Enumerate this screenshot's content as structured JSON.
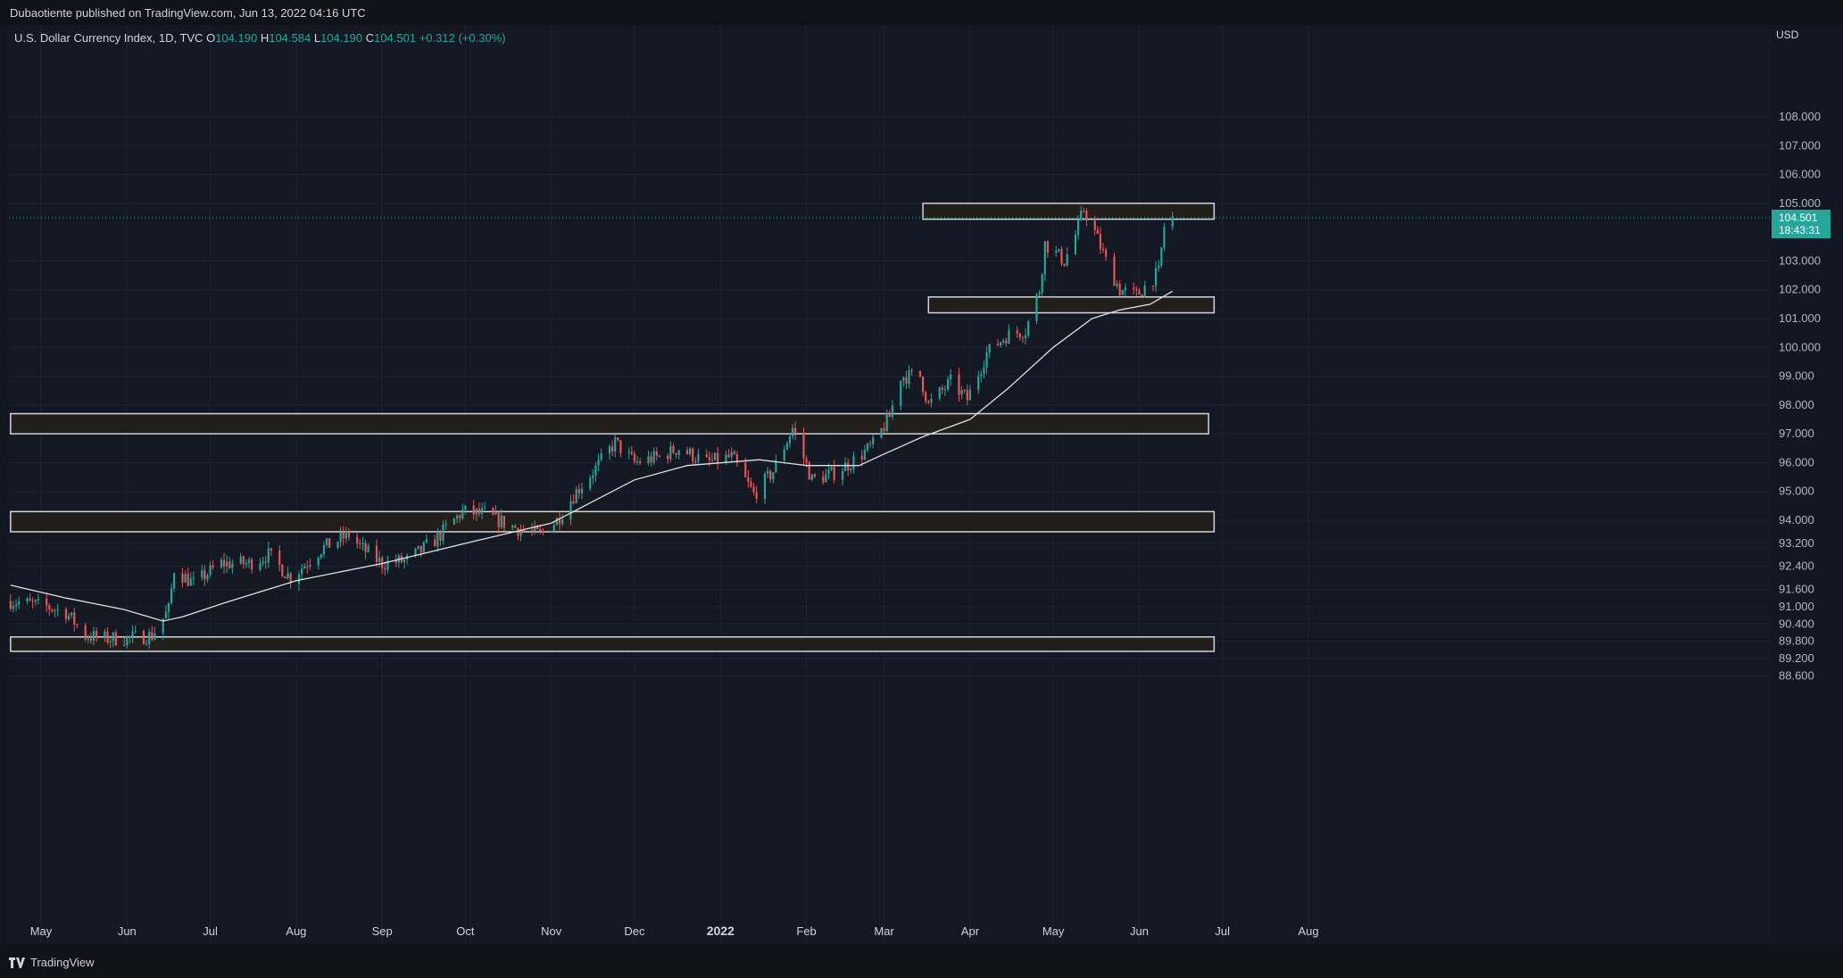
{
  "header": {
    "published": "Dubaotiente published on TradingView.com, Jun 13, 2022 04:16 UTC"
  },
  "legend": {
    "symbol": "U.S. Dollar Currency Index, 1D, TVC",
    "o_label": "O",
    "o": "104.190",
    "h_label": "H",
    "h": "104.584",
    "l_label": "L",
    "l": "104.190",
    "c_label": "C",
    "c": "104.501",
    "change": "+0.312 (+0.30%)"
  },
  "footer": {
    "brand": "TradingView"
  },
  "colors": {
    "up": "#26a69a",
    "down": "#ef5350",
    "ma": "#e0e0e0",
    "zone_fill": "#241f1c",
    "zone_border": "#d1d4dc",
    "price_badge": "#26a69a"
  },
  "chart_data": {
    "type": "candlestick",
    "currency": "USD",
    "y_ticks": [
      "108.000",
      "107.000",
      "106.000",
      "105.000",
      "103.000",
      "102.000",
      "101.000",
      "100.000",
      "99.000",
      "98.000",
      "97.000",
      "96.000",
      "95.000",
      "94.000",
      "93.200",
      "92.400",
      "91.600",
      "91.000",
      "90.400",
      "89.800",
      "89.200",
      "88.600"
    ],
    "x_ticks": [
      "May",
      "Jun",
      "Jul",
      "Aug",
      "Sep",
      "Oct",
      "Nov",
      "Dec",
      "2022",
      "Feb",
      "Mar",
      "Apr",
      "May",
      "Jun",
      "Jul",
      "Aug"
    ],
    "last_price": {
      "value": "104.501",
      "countdown": "18:43:31"
    },
    "zones": [
      {
        "from": "2022-03-15",
        "to": "2022-06-28",
        "low": 104.45,
        "high": 105.0
      },
      {
        "from": "2022-03-17",
        "to": "2022-06-28",
        "low": 101.2,
        "high": 101.75
      },
      {
        "from": "2021-04-20",
        "to": "2022-06-26",
        "low": 97.0,
        "high": 97.7
      },
      {
        "from": "2021-04-20",
        "to": "2022-06-28",
        "low": 93.6,
        "high": 94.3
      },
      {
        "from": "2021-04-20",
        "to": "2022-06-28",
        "low": 89.45,
        "high": 89.95
      }
    ],
    "series_close": [
      [
        "2021-04-20",
        91.2
      ],
      [
        "2021-05-03",
        91.0
      ],
      [
        "2021-05-10",
        90.8
      ],
      [
        "2021-05-17",
        90.0
      ],
      [
        "2021-05-24",
        89.9
      ],
      [
        "2021-06-01",
        89.9
      ],
      [
        "2021-06-10",
        90.0
      ],
      [
        "2021-06-16",
        90.9
      ],
      [
        "2021-06-18",
        92.3
      ],
      [
        "2021-06-25",
        91.8
      ],
      [
        "2021-07-05",
        92.5
      ],
      [
        "2021-07-15",
        92.5
      ],
      [
        "2021-07-22",
        92.8
      ],
      [
        "2021-07-30",
        92.0
      ],
      [
        "2021-08-10",
        93.0
      ],
      [
        "2021-08-20",
        93.5
      ],
      [
        "2021-08-25",
        93.0
      ],
      [
        "2021-09-01",
        92.5
      ],
      [
        "2021-09-10",
        92.6
      ],
      [
        "2021-09-20",
        93.3
      ],
      [
        "2021-09-30",
        94.3
      ],
      [
        "2021-10-08",
        94.2
      ],
      [
        "2021-10-20",
        93.7
      ],
      [
        "2021-10-28",
        93.5
      ],
      [
        "2021-11-03",
        94.0
      ],
      [
        "2021-11-10",
        95.0
      ],
      [
        "2021-11-17",
        95.8
      ],
      [
        "2021-11-24",
        96.7
      ],
      [
        "2021-12-01",
        96.0
      ],
      [
        "2021-12-10",
        96.2
      ],
      [
        "2021-12-17",
        96.5
      ],
      [
        "2021-12-27",
        96.0
      ],
      [
        "2022-01-05",
        96.2
      ],
      [
        "2022-01-13",
        94.9
      ],
      [
        "2022-01-20",
        95.7
      ],
      [
        "2022-01-27",
        97.2
      ],
      [
        "2022-02-03",
        95.4
      ],
      [
        "2022-02-10",
        95.6
      ],
      [
        "2022-02-17",
        96.0
      ],
      [
        "2022-02-25",
        96.6
      ],
      [
        "2022-03-03",
        97.6
      ],
      [
        "2022-03-07",
        99.0
      ],
      [
        "2022-03-14",
        99.0
      ],
      [
        "2022-03-17",
        98.0
      ],
      [
        "2022-03-25",
        98.8
      ],
      [
        "2022-03-31",
        98.2
      ],
      [
        "2022-04-07",
        99.8
      ],
      [
        "2022-04-14",
        100.4
      ],
      [
        "2022-04-21",
        100.6
      ],
      [
        "2022-04-26",
        102.0
      ],
      [
        "2022-04-28",
        103.6
      ],
      [
        "2022-05-05",
        103.0
      ],
      [
        "2022-05-09",
        103.9
      ],
      [
        "2022-05-12",
        104.8
      ],
      [
        "2022-05-16",
        104.0
      ],
      [
        "2022-05-20",
        103.0
      ],
      [
        "2022-05-25",
        102.0
      ],
      [
        "2022-05-31",
        101.8
      ],
      [
        "2022-06-03",
        102.1
      ],
      [
        "2022-06-08",
        102.6
      ],
      [
        "2022-06-10",
        104.2
      ],
      [
        "2022-06-13",
        104.5
      ]
    ],
    "moving_average": [
      [
        "2021-04-20",
        91.75
      ],
      [
        "2021-05-10",
        91.3
      ],
      [
        "2021-05-31",
        90.9
      ],
      [
        "2021-06-14",
        90.5
      ],
      [
        "2021-06-21",
        90.65
      ],
      [
        "2021-07-05",
        91.1
      ],
      [
        "2021-08-01",
        91.9
      ],
      [
        "2021-09-01",
        92.5
      ],
      [
        "2021-10-01",
        93.2
      ],
      [
        "2021-11-01",
        93.9
      ],
      [
        "2021-11-15",
        94.6
      ],
      [
        "2021-12-01",
        95.4
      ],
      [
        "2021-12-20",
        95.9
      ],
      [
        "2022-01-15",
        96.1
      ],
      [
        "2022-02-01",
        95.9
      ],
      [
        "2022-02-20",
        95.9
      ],
      [
        "2022-03-01",
        96.3
      ],
      [
        "2022-03-15",
        96.9
      ],
      [
        "2022-04-01",
        97.5
      ],
      [
        "2022-04-15",
        98.6
      ],
      [
        "2022-05-01",
        100.0
      ],
      [
        "2022-05-15",
        101.0
      ],
      [
        "2022-05-25",
        101.3
      ],
      [
        "2022-06-05",
        101.5
      ],
      [
        "2022-06-13",
        101.95
      ]
    ]
  }
}
